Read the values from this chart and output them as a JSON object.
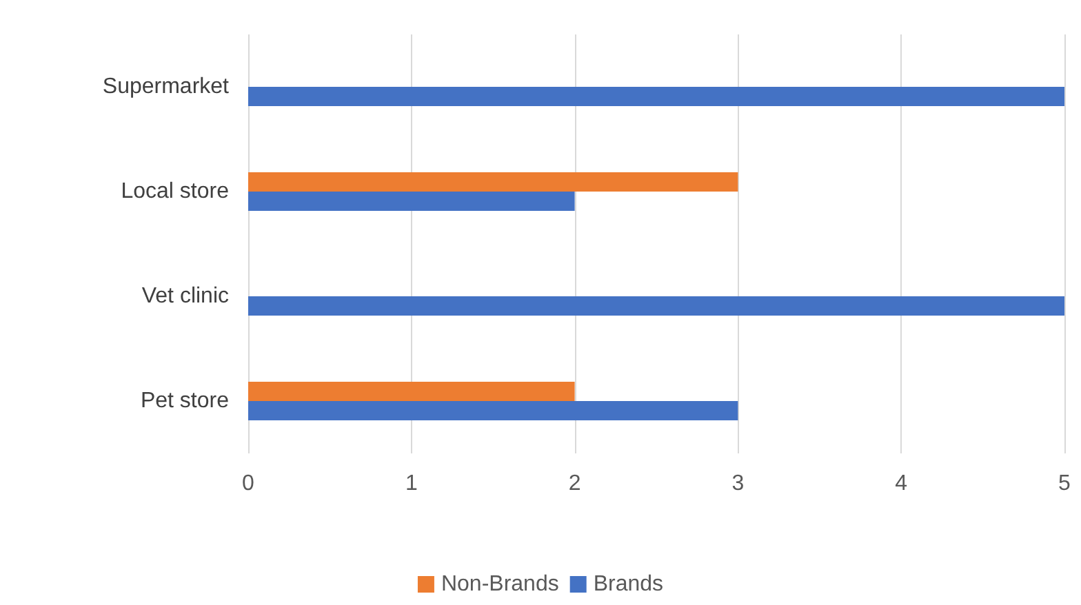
{
  "chart_data": {
    "type": "bar",
    "orientation": "horizontal",
    "categories": [
      "Supermarket",
      "Local store",
      "Vet clinic",
      "Pet store"
    ],
    "series": [
      {
        "name": "Non-Brands",
        "color": "#ed7d31",
        "values": [
          0,
          3,
          0,
          2
        ]
      },
      {
        "name": "Brands",
        "color": "#4472c4",
        "values": [
          5,
          2,
          5,
          3
        ]
      }
    ],
    "xlim": [
      0,
      5
    ],
    "xticks": [
      0,
      1,
      2,
      3,
      4,
      5
    ],
    "grid": "x",
    "legend": "bottom"
  }
}
